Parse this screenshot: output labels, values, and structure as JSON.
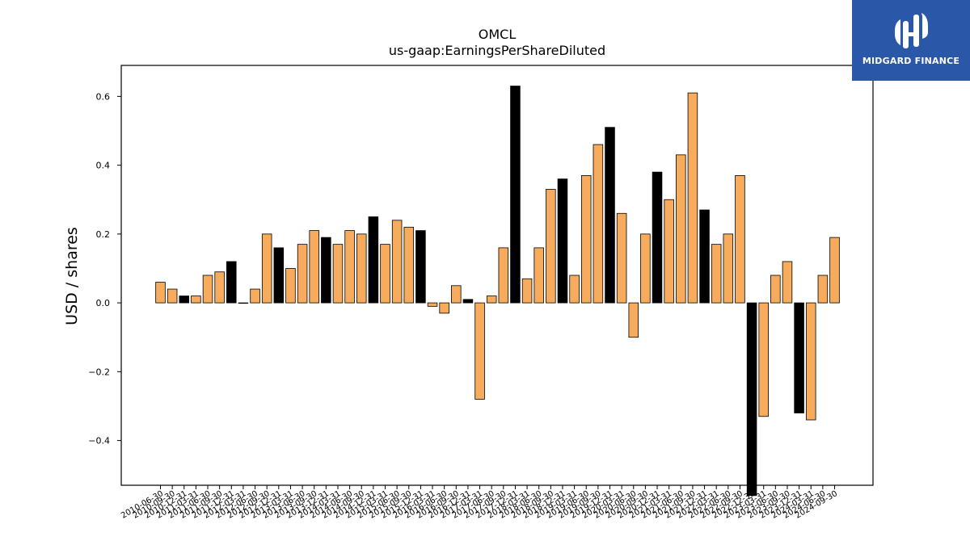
{
  "chart_data": {
    "type": "bar",
    "title": "OMCL",
    "subtitle": "us-gaap:EarningsPerShareDiluted",
    "xlabel": "",
    "ylabel": "USD / shares",
    "ylim": [
      -0.53,
      0.69
    ],
    "yticks": [
      0.6,
      0.4,
      0.2,
      0.0,
      -0.2,
      -0.4
    ],
    "ytick_labels": [
      "0.6",
      "0.4",
      "0.2",
      "0.0",
      "−0.2",
      "−0.4"
    ],
    "grid": false,
    "colors": {
      "quarterly": "#f7ab5c",
      "annual": "#000000",
      "edge": "#000000"
    },
    "categories": [
      "2010-06-30",
      "2010-09-30",
      "2010-12-31",
      "2011-03-31",
      "2011-06-30",
      "2011-09-30",
      "2011-12-31",
      "2012-03-31",
      "2012-06-30",
      "2012-09-30",
      "2012-12-31",
      "2013-03-31",
      "2013-06-30",
      "2013-09-30",
      "2013-12-31",
      "2014-03-31",
      "2014-06-30",
      "2014-09-30",
      "2014-12-31",
      "2015-03-31",
      "2015-06-30",
      "2015-09-30",
      "2015-12-31",
      "2016-03-31",
      "2016-06-30",
      "2016-09-30",
      "2016-12-31",
      "2017-03-31",
      "2017-06-30",
      "2017-09-30",
      "2017-12-31",
      "2018-03-31",
      "2018-06-30",
      "2018-09-30",
      "2018-12-31",
      "2019-03-31",
      "2019-06-30",
      "2019-09-30",
      "2019-12-31",
      "2020-03-31",
      "2020-06-30",
      "2020-09-30",
      "2020-12-31",
      "2021-03-31",
      "2021-06-30",
      "2021-09-30",
      "2021-12-31",
      "2022-03-31",
      "2022-06-30",
      "2022-09-30",
      "2022-12-31",
      "2023-03-31",
      "2023-06-30",
      "2023-09-30",
      "2023-12-31",
      "2024-03-31",
      "2024-06-30",
      "2024-09-30"
    ],
    "values": [
      0.06,
      0.04,
      0.02,
      0.02,
      0.08,
      0.09,
      0.12,
      0.0,
      0.04,
      0.2,
      0.16,
      0.1,
      0.17,
      0.21,
      0.19,
      0.17,
      0.21,
      0.2,
      0.25,
      0.17,
      0.24,
      0.22,
      0.21,
      -0.01,
      -0.03,
      0.05,
      0.01,
      -0.28,
      0.02,
      0.16,
      0.63,
      0.07,
      0.16,
      0.33,
      0.36,
      0.08,
      0.37,
      0.46,
      0.51,
      0.26,
      -0.1,
      0.2,
      0.38,
      0.3,
      0.43,
      0.61,
      0.27,
      0.17,
      0.2,
      0.37,
      -0.56,
      -0.33,
      0.08,
      0.12,
      -0.32,
      -0.34,
      0.08,
      0.19
    ],
    "annual_flags": [
      0,
      0,
      1,
      0,
      0,
      0,
      1,
      1,
      0,
      0,
      1,
      0,
      0,
      0,
      1,
      0,
      0,
      0,
      1,
      0,
      0,
      0,
      1,
      0,
      0,
      0,
      1,
      0,
      0,
      0,
      1,
      0,
      0,
      0,
      1,
      0,
      0,
      0,
      1,
      0,
      0,
      0,
      1,
      0,
      0,
      0,
      1,
      0,
      0,
      0,
      1,
      0,
      0,
      0,
      1,
      0,
      0,
      0
    ]
  },
  "logo": {
    "text": "MIDGARD FINANCE"
  }
}
